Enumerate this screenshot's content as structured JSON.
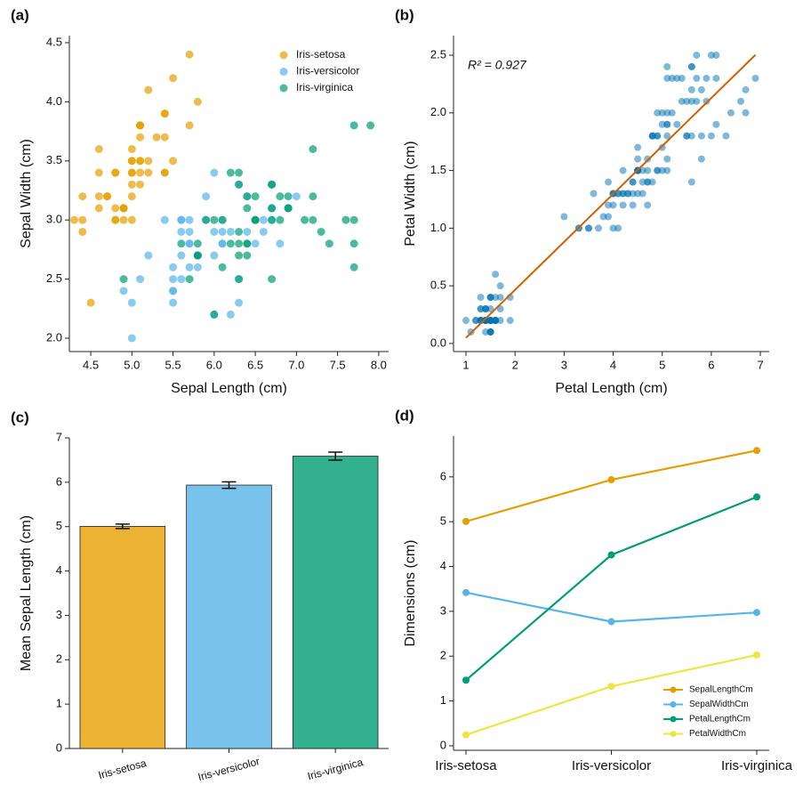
{
  "chart_data": [
    {
      "type": "scatter",
      "label": "(a)",
      "xlabel": "Sepal Length (cm)",
      "ylabel": "Sepal Width (cm)",
      "xlim": [
        4.24,
        8.12
      ],
      "ylim": [
        1.887,
        4.56
      ],
      "legend": "upper right",
      "xticks": [
        {
          "value": 4.5,
          "label": "4.5"
        },
        {
          "value": 5,
          "label": "5.0"
        },
        {
          "value": 5.5,
          "label": "5.5"
        },
        {
          "value": 6,
          "label": "6.0"
        },
        {
          "value": 6.5,
          "label": "6.5"
        },
        {
          "value": 7,
          "label": "7.0"
        },
        {
          "value": 7.5,
          "label": "7.5"
        },
        {
          "value": 8,
          "label": "8.0"
        }
      ],
      "yticks": [
        {
          "value": 2,
          "label": "2.0"
        },
        {
          "value": 2.5,
          "label": "2.5"
        },
        {
          "value": 3,
          "label": "3.0"
        },
        {
          "value": 3.5,
          "label": "3.5"
        },
        {
          "value": 4,
          "label": "4.0"
        },
        {
          "value": 4.5,
          "label": "4.5"
        }
      ],
      "series": [
        {
          "name": "Iris-setosa",
          "color": "#E69F00",
          "x": [
            5.1,
            4.9,
            4.7,
            4.6,
            5.0,
            5.4,
            4.6,
            5.0,
            4.4,
            4.9,
            5.4,
            4.8,
            4.8,
            4.3,
            5.8,
            5.7,
            5.4,
            5.1,
            5.7,
            5.1,
            5.4,
            5.1,
            4.6,
            5.1,
            4.8,
            5.0,
            5.0,
            5.2,
            5.2,
            4.7,
            4.8,
            5.4,
            5.2,
            5.5,
            4.9,
            5.0,
            5.5,
            4.9,
            4.4,
            5.1,
            5.0,
            4.5,
            4.4,
            5.0,
            5.1,
            4.8,
            5.1,
            4.6,
            5.3,
            5.0
          ],
          "values": [
            3.5,
            3.0,
            3.2,
            3.1,
            3.6,
            3.9,
            3.4,
            3.4,
            2.9,
            3.1,
            3.7,
            3.4,
            3.0,
            3.0,
            4.0,
            4.4,
            3.9,
            3.5,
            3.8,
            3.8,
            3.4,
            3.7,
            3.6,
            3.3,
            3.4,
            3.0,
            3.4,
            3.5,
            3.4,
            3.2,
            3.1,
            3.4,
            4.1,
            4.2,
            3.1,
            3.2,
            3.5,
            3.1,
            3.0,
            3.4,
            3.5,
            2.3,
            3.2,
            3.5,
            3.8,
            3.0,
            3.8,
            3.2,
            3.7,
            3.3
          ]
        },
        {
          "name": "Iris-versicolor",
          "color": "#56B4E9",
          "x": [
            7.0,
            6.4,
            6.9,
            5.5,
            6.5,
            5.7,
            6.3,
            4.9,
            6.6,
            5.2,
            5.0,
            5.9,
            6.0,
            6.1,
            5.6,
            6.7,
            5.6,
            5.8,
            6.2,
            5.6,
            5.9,
            6.1,
            6.3,
            6.1,
            6.4,
            6.6,
            6.8,
            6.7,
            6.0,
            5.7,
            5.5,
            5.5,
            5.8,
            6.0,
            5.4,
            6.0,
            6.7,
            6.3,
            5.6,
            5.5,
            5.5,
            6.1,
            5.8,
            5.0,
            5.6,
            5.7,
            5.7,
            6.2,
            5.1,
            5.7
          ],
          "values": [
            3.2,
            3.2,
            3.1,
            2.3,
            2.8,
            2.8,
            3.3,
            2.4,
            2.9,
            2.7,
            2.0,
            3.0,
            2.2,
            2.9,
            2.9,
            3.1,
            3.0,
            2.7,
            2.2,
            2.5,
            3.2,
            2.8,
            2.5,
            2.8,
            2.9,
            3.0,
            2.8,
            3.0,
            2.9,
            2.6,
            2.4,
            2.4,
            2.7,
            2.7,
            3.0,
            3.4,
            3.1,
            2.3,
            3.0,
            2.5,
            2.6,
            3.0,
            2.6,
            2.3,
            2.7,
            3.0,
            2.9,
            2.9,
            2.5,
            2.8
          ]
        },
        {
          "name": "Iris-virginica",
          "color": "#009E73",
          "x": [
            6.3,
            5.8,
            7.1,
            6.3,
            6.5,
            7.6,
            4.9,
            7.3,
            6.7,
            7.2,
            6.5,
            6.4,
            6.8,
            5.7,
            5.8,
            6.4,
            6.5,
            7.7,
            7.7,
            6.0,
            6.9,
            5.6,
            7.7,
            6.3,
            6.7,
            7.2,
            6.2,
            6.1,
            6.4,
            7.2,
            7.4,
            7.9,
            6.4,
            6.3,
            6.1,
            7.7,
            6.3,
            6.4,
            6.0,
            6.9,
            6.7,
            6.9,
            5.8,
            6.8,
            6.7,
            6.7,
            6.3,
            6.5,
            6.2,
            5.9
          ],
          "values": [
            3.3,
            2.7,
            3.0,
            2.9,
            3.0,
            3.0,
            2.5,
            2.9,
            2.5,
            3.6,
            3.2,
            2.7,
            3.0,
            2.5,
            2.8,
            3.2,
            3.0,
            3.8,
            2.6,
            2.2,
            3.2,
            2.8,
            2.8,
            2.7,
            3.3,
            3.2,
            2.8,
            3.0,
            2.8,
            3.0,
            2.8,
            3.8,
            2.8,
            2.8,
            2.6,
            3.0,
            3.4,
            3.1,
            3.0,
            3.1,
            3.1,
            3.1,
            2.7,
            3.2,
            3.3,
            3.0,
            2.5,
            3.0,
            3.4,
            3.0
          ]
        }
      ]
    },
    {
      "type": "scatter",
      "label": "(b)",
      "xlabel": "Petal Length (cm)",
      "ylabel": "Petal Width (cm)",
      "xlim": [
        0.746,
        7.18
      ],
      "ylim": [
        -0.07,
        2.67
      ],
      "annotation": "R² = 0.927",
      "xticks": [
        1,
        2,
        3,
        4,
        5,
        6,
        7
      ],
      "yticks": [
        {
          "value": 0,
          "label": "0.0"
        },
        {
          "value": 0.5,
          "label": "0.5"
        },
        {
          "value": 1,
          "label": "1.0"
        },
        {
          "value": 1.5,
          "label": "1.5"
        },
        {
          "value": 2,
          "label": "2.0"
        },
        {
          "value": 2.5,
          "label": "2.5"
        }
      ],
      "series": [
        {
          "color": "#0072B2",
          "x": [
            1.4,
            1.4,
            1.3,
            1.5,
            1.4,
            1.7,
            1.4,
            1.5,
            1.4,
            1.5,
            1.5,
            1.6,
            1.4,
            1.1,
            1.2,
            1.5,
            1.3,
            1.4,
            1.7,
            1.5,
            1.7,
            1.5,
            1.0,
            1.7,
            1.9,
            1.6,
            1.6,
            1.5,
            1.4,
            1.6,
            1.6,
            1.5,
            1.5,
            1.4,
            1.5,
            1.2,
            1.3,
            1.5,
            1.3,
            1.5,
            1.3,
            1.3,
            1.3,
            1.6,
            1.9,
            1.4,
            1.6,
            1.4,
            1.5,
            1.4,
            4.7,
            4.5,
            4.9,
            4.0,
            4.6,
            4.5,
            4.7,
            3.3,
            4.6,
            3.9,
            3.5,
            4.2,
            4.0,
            4.7,
            3.6,
            4.4,
            4.5,
            4.1,
            4.5,
            3.9,
            4.8,
            4.0,
            4.9,
            4.7,
            4.3,
            4.4,
            4.8,
            5.0,
            4.5,
            3.5,
            3.8,
            3.7,
            3.9,
            5.1,
            4.5,
            4.5,
            4.7,
            4.4,
            4.1,
            4.0,
            4.4,
            4.6,
            4.0,
            3.3,
            4.2,
            4.2,
            4.2,
            4.3,
            3.0,
            4.1,
            6.0,
            5.1,
            5.9,
            5.6,
            5.8,
            6.6,
            4.5,
            6.3,
            5.8,
            6.1,
            5.1,
            5.3,
            5.5,
            5.0,
            5.1,
            5.3,
            5.5,
            6.7,
            6.9,
            5.0,
            5.7,
            4.9,
            6.7,
            4.9,
            5.7,
            6.0,
            4.8,
            4.9,
            5.6,
            5.8,
            6.1,
            6.4,
            5.6,
            5.1,
            5.6,
            6.1,
            5.6,
            5.5,
            4.8,
            5.4,
            5.6,
            5.1,
            5.1,
            5.9,
            5.7,
            5.2,
            5.0,
            5.2,
            5.4,
            5.1
          ],
          "values": [
            0.2,
            0.2,
            0.2,
            0.2,
            0.2,
            0.4,
            0.3,
            0.2,
            0.2,
            0.1,
            0.2,
            0.2,
            0.1,
            0.1,
            0.2,
            0.4,
            0.4,
            0.3,
            0.3,
            0.3,
            0.2,
            0.4,
            0.2,
            0.5,
            0.2,
            0.2,
            0.4,
            0.2,
            0.2,
            0.2,
            0.2,
            0.4,
            0.1,
            0.2,
            0.1,
            0.2,
            0.2,
            0.1,
            0.2,
            0.2,
            0.3,
            0.3,
            0.2,
            0.6,
            0.4,
            0.3,
            0.2,
            0.2,
            0.2,
            0.2,
            1.4,
            1.5,
            1.5,
            1.3,
            1.5,
            1.3,
            1.6,
            1.0,
            1.3,
            1.4,
            1.0,
            1.5,
            1.0,
            1.4,
            1.3,
            1.4,
            1.5,
            1.0,
            1.5,
            1.1,
            1.8,
            1.3,
            1.5,
            1.2,
            1.3,
            1.4,
            1.4,
            1.7,
            1.5,
            1.0,
            1.1,
            1.0,
            1.2,
            1.6,
            1.5,
            1.6,
            1.5,
            1.3,
            1.3,
            1.3,
            1.2,
            1.4,
            1.2,
            1.0,
            1.3,
            1.2,
            1.3,
            1.3,
            1.1,
            1.3,
            2.5,
            1.9,
            2.1,
            1.8,
            2.2,
            2.1,
            1.7,
            1.8,
            1.8,
            2.5,
            2.0,
            1.9,
            2.1,
            2.0,
            2.4,
            2.3,
            1.8,
            2.2,
            2.3,
            1.5,
            2.3,
            2.0,
            2.0,
            1.8,
            2.1,
            1.8,
            1.8,
            1.8,
            2.1,
            1.6,
            1.9,
            2.0,
            2.2,
            1.5,
            1.4,
            2.3,
            2.4,
            1.8,
            1.8,
            2.1,
            2.4,
            2.3,
            1.9,
            2.3,
            2.5,
            2.3,
            1.9,
            2.0,
            2.3,
            1.8
          ]
        }
      ],
      "fit": {
        "color": "#D55E00",
        "x": [
          1.0,
          6.9
        ],
        "values": [
          0.049,
          2.503
        ]
      }
    },
    {
      "type": "bar",
      "label": "(c)",
      "ylabel": "Mean Sepal Length (cm)",
      "categories": [
        "Iris-setosa",
        "Iris-versicolor",
        "Iris-virginica"
      ],
      "values": [
        5.006,
        5.936,
        6.588
      ],
      "errors": [
        0.05,
        0.073,
        0.09
      ],
      "colors": [
        "#E69F00",
        "#56B4E9",
        "#009E73"
      ],
      "ylim": [
        0,
        7
      ],
      "yticks": [
        0,
        1,
        2,
        3,
        4,
        5,
        6,
        7
      ]
    },
    {
      "type": "line",
      "label": "(d)",
      "ylabel": "Dimensions (cm)",
      "categories": [
        "Iris-setosa",
        "Iris-versicolor",
        "Iris-virginica"
      ],
      "ylim": [
        -0.1,
        6.91
      ],
      "yticks": [
        0,
        1,
        2,
        3,
        4,
        5,
        6
      ],
      "legend": "lower right",
      "series": [
        {
          "name": "SepalLengthCm",
          "color": "#E69F00",
          "values": [
            5.006,
            5.936,
            6.588
          ]
        },
        {
          "name": "SepalWidthCm",
          "color": "#56B4E9",
          "values": [
            3.418,
            2.77,
            2.974
          ]
        },
        {
          "name": "PetalLengthCm",
          "color": "#009E73",
          "values": [
            1.464,
            4.26,
            5.552
          ]
        },
        {
          "name": "PetalWidthCm",
          "color": "#F0E442",
          "values": [
            0.244,
            1.326,
            2.026
          ]
        }
      ]
    }
  ]
}
